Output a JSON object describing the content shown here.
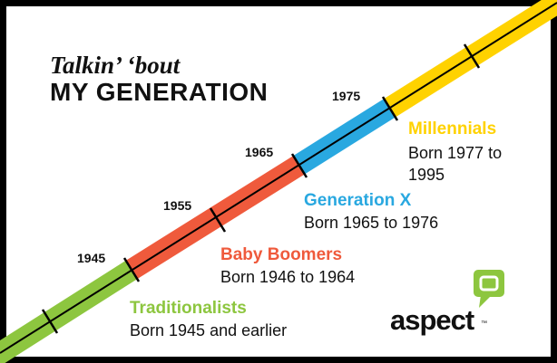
{
  "title": {
    "line1": "Talkin’ ‘bout",
    "line2": "MY GENERATION"
  },
  "years": [
    "1945",
    "1955",
    "1965",
    "1975"
  ],
  "generations": [
    {
      "name": "Traditionalists",
      "born": "Born 1945 and earlier"
    },
    {
      "name": "Baby Boomers",
      "born": "Born 1946 to 1964"
    },
    {
      "name": "Generation X",
      "born": "Born 1965 to 1976"
    },
    {
      "name": "Millennials",
      "born": "Born 1977 to 1995"
    }
  ],
  "logo": {
    "text": "aspect",
    "mark": "™"
  }
}
